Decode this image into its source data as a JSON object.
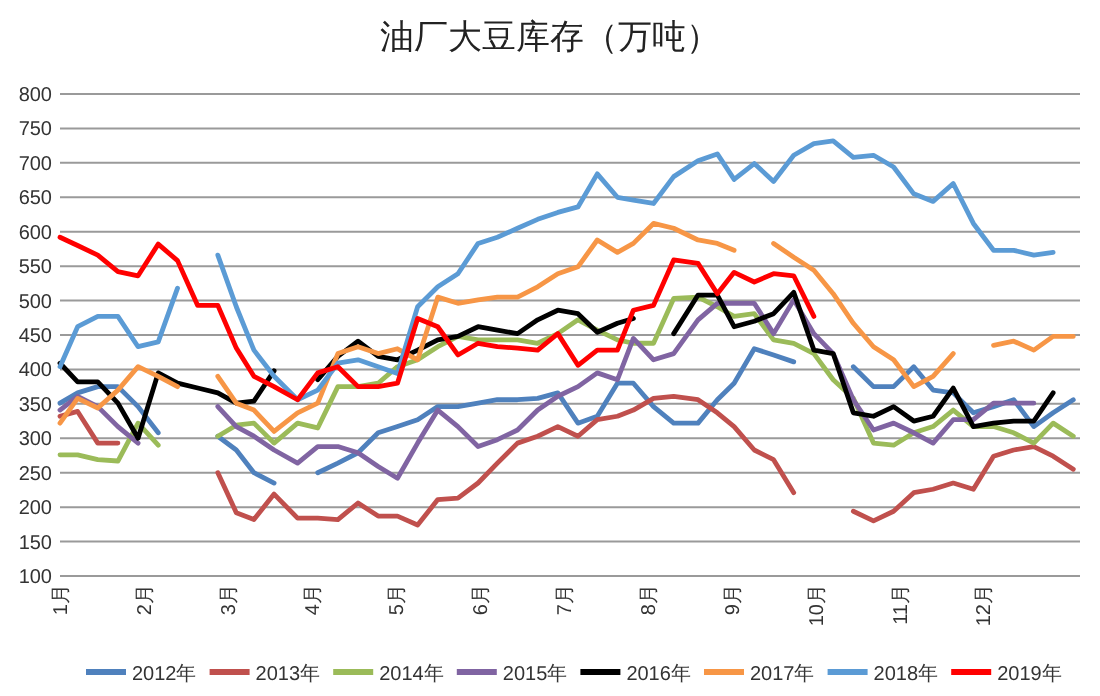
{
  "chart_data": {
    "type": "line",
    "title": "油厂大豆库存（万吨）",
    "x": [
      1,
      1.21,
      1.45,
      1.69,
      1.93,
      2.17,
      2.4,
      2.64,
      2.88,
      3.1,
      3.31,
      3.55,
      3.83,
      4.07,
      4.31,
      4.55,
      4.79,
      5.02,
      5.26,
      5.5,
      5.74,
      5.98,
      6.21,
      6.45,
      6.69,
      6.93,
      7.17,
      7.4,
      7.64,
      7.83,
      8.07,
      8.31,
      8.6,
      8.83,
      9.03,
      9.27,
      9.5,
      9.74,
      9.98,
      10.21,
      10.45,
      10.69,
      10.93,
      11.17,
      11.4,
      11.64,
      11.88,
      12.12,
      12.36,
      12.6,
      12.83,
      13.07
    ],
    "xlim": [
      1,
      13.15
    ],
    "xticks": [
      {
        "value": 1,
        "label": "1月"
      },
      {
        "value": 2,
        "label": "2月"
      },
      {
        "value": 3,
        "label": "3月"
      },
      {
        "value": 4,
        "label": "4月"
      },
      {
        "value": 5,
        "label": "5月"
      },
      {
        "value": 6,
        "label": "6月"
      },
      {
        "value": 7,
        "label": "7月"
      },
      {
        "value": 8,
        "label": "8月"
      },
      {
        "value": 9,
        "label": "9月"
      },
      {
        "value": 10,
        "label": "10月"
      },
      {
        "value": 11,
        "label": "11月"
      },
      {
        "value": 12,
        "label": "12月"
      }
    ],
    "ylim": [
      100,
      800
    ],
    "yticks": [
      100,
      150,
      200,
      250,
      300,
      350,
      400,
      450,
      500,
      550,
      600,
      650,
      700,
      750,
      800
    ],
    "grid": "y",
    "legend": "bottom",
    "series": [
      {
        "name": "2012年",
        "color": "#4f81bd",
        "values": [
          351,
          366,
          375,
          375,
          346,
          308,
          null,
          null,
          303,
          283,
          250,
          235,
          null,
          250,
          264,
          279,
          308,
          317,
          327,
          346,
          346,
          351,
          356,
          356,
          358,
          366,
          322,
          332,
          380,
          380,
          346,
          322,
          322,
          356,
          380,
          430,
          421,
          411,
          null,
          null,
          404,
          375,
          375,
          404,
          370,
          366,
          337,
          346,
          356,
          317,
          337,
          356
        ]
      },
      {
        "name": "2013年",
        "color": "#c0504d",
        "values": [
          332,
          339,
          293,
          293,
          null,
          null,
          null,
          null,
          250,
          192,
          182,
          219,
          184,
          184,
          182,
          206,
          187,
          187,
          174,
          211,
          213,
          235,
          264,
          293,
          303,
          317,
          303,
          327,
          332,
          341,
          358,
          361,
          356,
          337,
          317,
          283,
          269,
          221,
          null,
          null,
          194,
          180,
          194,
          221,
          226,
          235,
          226,
          274,
          283,
          288,
          274,
          255
        ]
      },
      {
        "name": "2014年",
        "color": "#9bbb59",
        "values": [
          276,
          276,
          269,
          267,
          322,
          290,
          null,
          null,
          303,
          319,
          322,
          293,
          322,
          315,
          375,
          375,
          380,
          404,
          414,
          433,
          448,
          443,
          443,
          443,
          438,
          452,
          472,
          457,
          443,
          438,
          438,
          503,
          505,
          491,
          477,
          481,
          443,
          438,
          423,
          385,
          358,
          293,
          290,
          308,
          317,
          341,
          317,
          317,
          308,
          293,
          322,
          303
        ]
      },
      {
        "name": "2015年",
        "color": "#8064a2",
        "values": [
          341,
          361,
          346,
          317,
          293,
          null,
          null,
          null,
          346,
          317,
          303,
          283,
          264,
          288,
          288,
          279,
          259,
          242,
          293,
          341,
          317,
          288,
          298,
          312,
          341,
          361,
          375,
          395,
          385,
          445,
          414,
          423,
          472,
          496,
          496,
          496,
          452,
          501,
          452,
          423,
          356,
          312,
          322,
          308,
          293,
          327,
          327,
          351,
          351,
          351,
          null,
          null
        ]
      },
      {
        "name": "2016年",
        "color": "#000000",
        "values": [
          409,
          382,
          382,
          351,
          300,
          395,
          380,
          373,
          366,
          351,
          354,
          398,
          null,
          385,
          419,
          441,
          419,
          414,
          428,
          443,
          448,
          462,
          457,
          452,
          472,
          486,
          481,
          454,
          467,
          474,
          null,
          452,
          508,
          508,
          462,
          470,
          481,
          512,
          428,
          423,
          337,
          332,
          346,
          325,
          332,
          373,
          317,
          322,
          325,
          325,
          366,
          null
        ]
      },
      {
        "name": "2017年",
        "color": "#f79646",
        "values": [
          322,
          358,
          344,
          370,
          404,
          390,
          375,
          null,
          390,
          351,
          341,
          310,
          337,
          351,
          423,
          433,
          423,
          430,
          414,
          505,
          496,
          501,
          505,
          505,
          520,
          539,
          549,
          588,
          570,
          583,
          612,
          605,
          588,
          583,
          573,
          null,
          583,
          563,
          544,
          510,
          467,
          433,
          414,
          375,
          390,
          423,
          null,
          435,
          441,
          428,
          448,
          448
        ]
      },
      {
        "name": "2018年",
        "color": "#5b9bd5",
        "values": [
          404,
          462,
          477,
          477,
          433,
          440,
          518,
          null,
          566,
          491,
          428,
          390,
          356,
          370,
          409,
          414,
          404,
          394,
          491,
          520,
          539,
          583,
          592,
          605,
          618,
          628,
          636,
          684,
          650,
          646,
          641,
          680,
          703,
          713,
          676,
          699,
          673,
          711,
          728,
          732,
          708,
          711,
          694,
          655,
          644,
          670,
          612,
          573,
          573,
          566,
          570,
          null
        ]
      },
      {
        "name": "2019年",
        "color": "#ff0000",
        "values": [
          592,
          580,
          566,
          542,
          536,
          582,
          558,
          493,
          493,
          431,
          390,
          375,
          356,
          395,
          404,
          375,
          375,
          380,
          474,
          462,
          421,
          438,
          433,
          431,
          428,
          452,
          406,
          428,
          428,
          486,
          493,
          559,
          554,
          510,
          541,
          527,
          539,
          536,
          477,
          null,
          null,
          null,
          null,
          null,
          null,
          null,
          null,
          null,
          null,
          null,
          null,
          null
        ]
      }
    ]
  }
}
